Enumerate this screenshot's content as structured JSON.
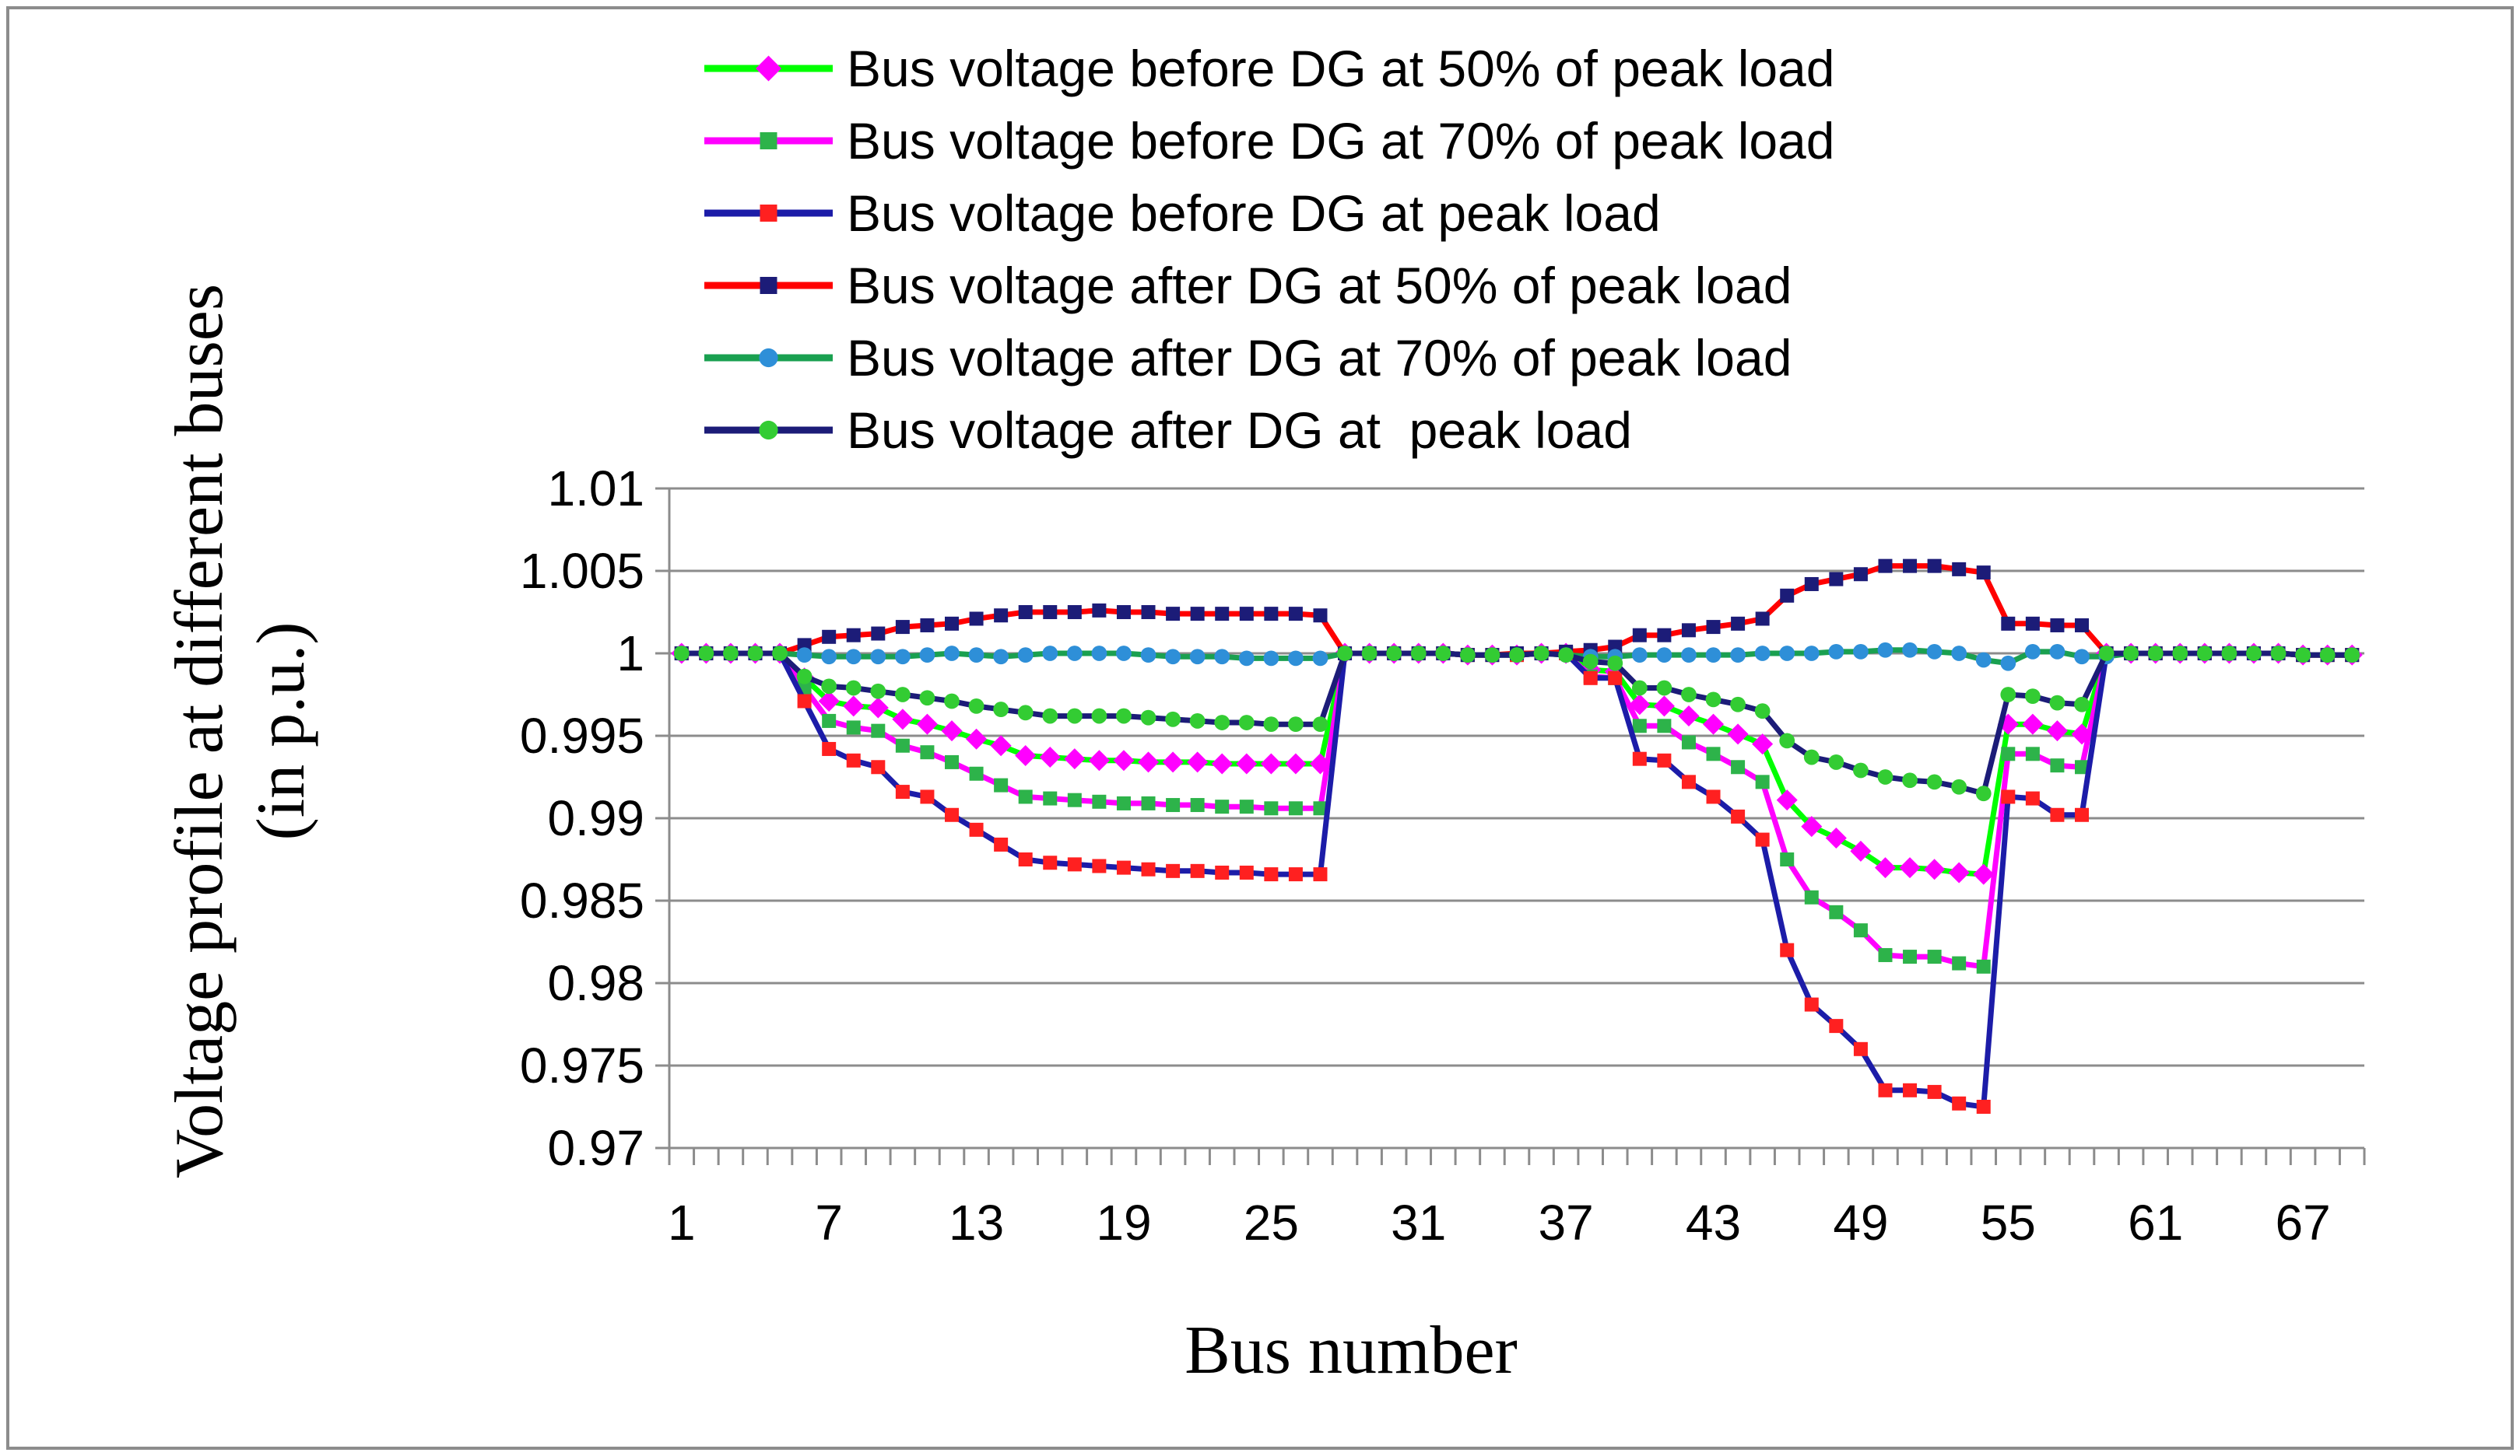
{
  "chart_data": {
    "type": "line",
    "title": "",
    "xlabel": "Bus number",
    "ylabel_line1": "Voltage profile at different buses",
    "ylabel_line2": "(in p.u.)",
    "ylim": [
      0.97,
      1.01
    ],
    "yticks": [
      0.97,
      0.975,
      0.98,
      0.985,
      0.99,
      0.995,
      1,
      1.005,
      1.01
    ],
    "ytick_labels": [
      "0.97",
      "0.975",
      "0.98",
      "0.985",
      "0.99",
      "0.995",
      "1",
      "1.005",
      "1.01"
    ],
    "xlim": [
      1,
      69
    ],
    "xtick_labels": [
      "1",
      "7",
      "13",
      "19",
      "25",
      "31",
      "37",
      "43",
      "49",
      "55",
      "61",
      "67"
    ],
    "xtick_values": [
      1,
      7,
      13,
      19,
      25,
      31,
      37,
      43,
      49,
      55,
      61,
      67
    ],
    "grid": "horizontal",
    "legend_position": "top",
    "x": [
      1,
      2,
      3,
      4,
      5,
      6,
      7,
      8,
      9,
      10,
      11,
      12,
      13,
      14,
      15,
      16,
      17,
      18,
      19,
      20,
      21,
      22,
      23,
      24,
      25,
      26,
      27,
      28,
      29,
      30,
      31,
      32,
      33,
      34,
      35,
      36,
      37,
      38,
      39,
      40,
      41,
      42,
      43,
      44,
      45,
      46,
      47,
      48,
      49,
      50,
      51,
      52,
      53,
      54,
      55,
      56,
      57,
      58,
      59,
      60,
      61,
      62,
      63,
      64,
      65,
      66,
      67,
      68,
      69
    ],
    "series": [
      {
        "name": "Bus voltage before DG at 50% of peak load",
        "line_color": "#00ff00",
        "marker_color": "#ff00ff",
        "marker": "diamond",
        "values": [
          1,
          1,
          1,
          1,
          1,
          0.9985,
          0.9971,
          0.9968,
          0.9967,
          0.996,
          0.9957,
          0.9953,
          0.9948,
          0.9944,
          0.9938,
          0.9937,
          0.9936,
          0.9935,
          0.9935,
          0.9934,
          0.9934,
          0.9934,
          0.9933,
          0.9933,
          0.9933,
          0.9933,
          0.9933,
          1,
          1,
          1,
          1,
          1,
          0.9999,
          0.9999,
          0.9999,
          1,
          1,
          0.999,
          0.9989,
          0.9969,
          0.9968,
          0.9962,
          0.9957,
          0.9951,
          0.9945,
          0.9911,
          0.9895,
          0.9888,
          0.988,
          0.987,
          0.987,
          0.9869,
          0.9867,
          0.9866,
          0.9957,
          0.9957,
          0.9953,
          0.9951,
          1,
          1,
          1,
          1,
          1,
          1,
          1,
          1,
          0.9999,
          0.9999,
          0.9999
        ]
      },
      {
        "name": "Bus voltage before DG at 70% of peak load",
        "line_color": "#ff00ff",
        "marker_color": "#2db34a",
        "marker": "square",
        "values": [
          1,
          1,
          1,
          1,
          1,
          0.9979,
          0.9959,
          0.9955,
          0.9953,
          0.9944,
          0.994,
          0.9934,
          0.9927,
          0.992,
          0.9913,
          0.9912,
          0.9911,
          0.991,
          0.9909,
          0.9909,
          0.9908,
          0.9908,
          0.9907,
          0.9907,
          0.9906,
          0.9906,
          0.9906,
          1,
          1,
          1,
          1,
          1,
          0.9999,
          0.9999,
          0.9999,
          1,
          1,
          0.9986,
          0.9985,
          0.9956,
          0.9956,
          0.9946,
          0.9939,
          0.9931,
          0.9922,
          0.9875,
          0.9852,
          0.9843,
          0.9832,
          0.9817,
          0.9816,
          0.9816,
          0.9812,
          0.981,
          0.9939,
          0.9939,
          0.9932,
          0.9931,
          1,
          1,
          1,
          1,
          1,
          1,
          1,
          1,
          0.9999,
          0.9999,
          0.9999
        ]
      },
      {
        "name": "Bus voltage before DG at peak load",
        "line_color": "#1c1ca8",
        "marker_color": "#ff2020",
        "marker": "square",
        "values": [
          1,
          1,
          1,
          1,
          1,
          0.9971,
          0.9942,
          0.9935,
          0.9931,
          0.9916,
          0.9913,
          0.9902,
          0.9893,
          0.9884,
          0.9875,
          0.9873,
          0.9872,
          0.9871,
          0.987,
          0.9869,
          0.9868,
          0.9868,
          0.9867,
          0.9867,
          0.9866,
          0.9866,
          0.9866,
          1,
          1,
          1,
          1,
          1,
          0.9999,
          0.9999,
          0.9999,
          1,
          1,
          0.9985,
          0.9985,
          0.9936,
          0.9935,
          0.9922,
          0.9913,
          0.9901,
          0.9887,
          0.982,
          0.9787,
          0.9774,
          0.976,
          0.9735,
          0.9735,
          0.9734,
          0.9727,
          0.9725,
          0.9913,
          0.9912,
          0.9902,
          0.9902,
          1,
          1,
          1,
          1,
          1,
          1,
          1,
          1,
          0.9999,
          0.9999,
          0.9999
        ]
      },
      {
        "name": "Bus voltage after DG at 50% of peak load",
        "line_color": "#ff0000",
        "marker_color": "#1c1c78",
        "marker": "square",
        "values": [
          1,
          1,
          1,
          1,
          1,
          1.0005,
          1.001,
          1.0011,
          1.0012,
          1.0016,
          1.0017,
          1.0018,
          1.0021,
          1.0023,
          1.0025,
          1.0025,
          1.0025,
          1.0026,
          1.0025,
          1.0025,
          1.0024,
          1.0024,
          1.0024,
          1.0024,
          1.0024,
          1.0024,
          1.0023,
          1,
          1,
          1,
          1,
          1,
          0.9999,
          0.9999,
          1,
          1,
          1.0001,
          1.0002,
          1.0004,
          1.0011,
          1.0011,
          1.0014,
          1.0016,
          1.0018,
          1.0021,
          1.0035,
          1.0042,
          1.0045,
          1.0048,
          1.0053,
          1.0053,
          1.0053,
          1.0051,
          1.0049,
          1.0018,
          1.0018,
          1.0017,
          1.0017,
          1,
          1,
          1,
          1,
          1,
          1,
          1,
          1,
          0.9999,
          0.9999,
          0.9999
        ]
      },
      {
        "name": "Bus voltage after DG at 70% of peak load",
        "line_color": "#1aa050",
        "marker_color": "#2e8fd8",
        "marker": "circle",
        "values": [
          1,
          1,
          1,
          1,
          1,
          0.9999,
          0.9998,
          0.9998,
          0.9998,
          0.9998,
          0.9999,
          1,
          0.9999,
          0.9998,
          0.9999,
          1,
          1,
          1,
          1,
          0.9999,
          0.9998,
          0.9998,
          0.9998,
          0.9997,
          0.9997,
          0.9997,
          0.9997,
          1,
          1,
          1,
          1,
          1,
          0.9999,
          0.9999,
          0.9999,
          1,
          0.9999,
          0.9998,
          0.9998,
          0.9999,
          0.9999,
          0.9999,
          0.9999,
          0.9999,
          1,
          1,
          1,
          1.0001,
          1.0001,
          1.0002,
          1.0002,
          1.0001,
          1,
          0.9996,
          0.9994,
          1.0001,
          1.0001,
          0.9998,
          0.9998,
          1,
          1,
          1,
          1,
          1,
          1,
          1,
          0.9999,
          0.9999,
          0.9999
        ]
      },
      {
        "name": "Bus voltage after DG at  peak load",
        "line_color": "#1c1c78",
        "marker_color": "#33cc33",
        "marker": "circle",
        "values": [
          1,
          1,
          1,
          1,
          1,
          0.9986,
          0.998,
          0.9979,
          0.9977,
          0.9975,
          0.9973,
          0.9971,
          0.9968,
          0.9966,
          0.9964,
          0.9962,
          0.9962,
          0.9962,
          0.9962,
          0.9961,
          0.996,
          0.9959,
          0.9958,
          0.9958,
          0.9957,
          0.9957,
          0.9957,
          1,
          1,
          1,
          1,
          1,
          0.9999,
          0.9999,
          0.9999,
          1,
          0.9999,
          0.9995,
          0.9994,
          0.9979,
          0.9979,
          0.9975,
          0.9972,
          0.9969,
          0.9965,
          0.9947,
          0.9937,
          0.9934,
          0.9929,
          0.9925,
          0.9923,
          0.9922,
          0.9919,
          0.9915,
          0.9975,
          0.9974,
          0.997,
          0.9969,
          1,
          1,
          1,
          1,
          1,
          1,
          1,
          1,
          0.9999,
          0.9999,
          0.9999
        ]
      }
    ]
  }
}
